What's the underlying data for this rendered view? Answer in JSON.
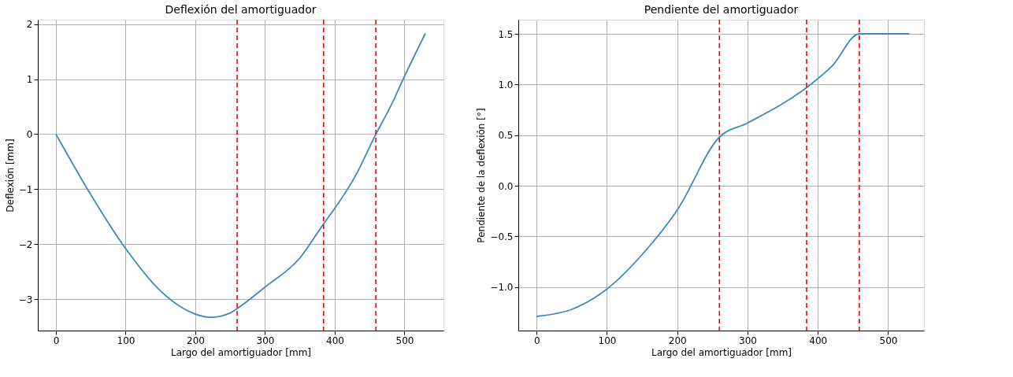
{
  "chart_data": [
    {
      "type": "line",
      "title": "Deflexión del amortiguador",
      "xlabel": "Largo del amortiguador [mm]",
      "ylabel": "Deflexión [mm]",
      "x": [
        0,
        50,
        100,
        150,
        200,
        222,
        250,
        260,
        300,
        350,
        384,
        400,
        430,
        459,
        480,
        500,
        530
      ],
      "series": [
        {
          "color": "#3a8ac3",
          "values": [
            0,
            -1.1,
            -2.08,
            -2.85,
            -3.27,
            -3.33,
            -3.25,
            -3.17,
            -2.78,
            -2.25,
            -1.63,
            -1.35,
            -0.75,
            0,
            0.5,
            1.05,
            1.83
          ]
        }
      ],
      "xlim": [
        -26,
        556
      ],
      "ylim": [
        -3.57,
        2.08
      ],
      "xticks": [
        0,
        100,
        200,
        300,
        400,
        500
      ],
      "yticks": [
        {
          "value": -3,
          "label": "−3"
        },
        {
          "value": -2,
          "label": "−2"
        },
        {
          "value": -1,
          "label": "−1"
        },
        0,
        1,
        2
      ],
      "ref_lines": [
        {
          "axis": "x",
          "value": 260,
          "color": "#ff0000",
          "line_style": "dashed"
        },
        {
          "axis": "x",
          "value": 384,
          "color": "#ff0000",
          "line_style": "dashed"
        },
        {
          "axis": "x",
          "value": 459,
          "color": "#ff0000",
          "line_style": "dashed"
        }
      ],
      "grid": true,
      "marker": "none",
      "line_style": "solid"
    },
    {
      "type": "line",
      "title": "Pendiente del amortiguador",
      "xlabel": "Largo del amortiguador [mm]",
      "ylabel": "Pendiente de la deflexión [°]",
      "x": [
        0,
        50,
        100,
        150,
        200,
        260,
        300,
        384,
        420,
        459,
        530
      ],
      "series": [
        {
          "color": "#3a8ac3",
          "values": [
            -1.29,
            -1.22,
            -1.02,
            -0.68,
            -0.24,
            0.48,
            0.62,
            0.97,
            1.18,
            1.5,
            1.5
          ]
        }
      ],
      "xlim": [
        -26,
        551
      ],
      "ylim": [
        -1.43,
        1.64
      ],
      "xticks": [
        0,
        100,
        200,
        300,
        400,
        500
      ],
      "yticks": [
        {
          "value": -1,
          "label": "−1.0"
        },
        {
          "value": -0.5,
          "label": "−0.5"
        },
        {
          "value": 0,
          "label": "0.0"
        },
        0.5,
        {
          "value": 1,
          "label": "1.0"
        },
        1.5
      ],
      "ref_lines": [
        {
          "axis": "x",
          "value": 260,
          "color": "#ff0000",
          "line_style": "dashed"
        },
        {
          "axis": "x",
          "value": 384,
          "color": "#ff0000",
          "line_style": "dashed"
        },
        {
          "axis": "x",
          "value": 459,
          "color": "#ff0000",
          "line_style": "dashed"
        }
      ],
      "grid": true,
      "marker": "none",
      "line_style": "solid"
    }
  ]
}
